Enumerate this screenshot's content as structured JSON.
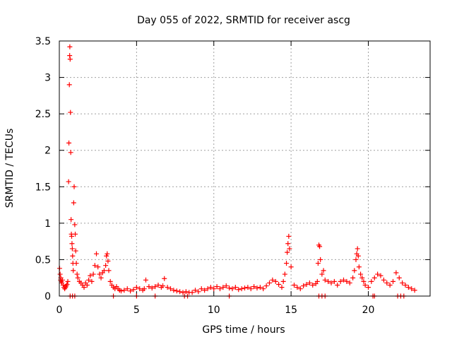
{
  "chart_data": {
    "type": "scatter",
    "title": "Day 055 of 2022, SRMTID for receiver ascg",
    "xlabel": "GPS time / hours",
    "ylabel": "SRMTID / TECUs",
    "xlim": [
      0,
      24
    ],
    "ylim": [
      0,
      3.5
    ],
    "xticks": [
      0,
      5,
      10,
      15,
      20
    ],
    "xtick_labels": [
      "0",
      "5",
      "10",
      "15",
      "20"
    ],
    "yticks": [
      0,
      0.5,
      1,
      1.5,
      2,
      2.5,
      3,
      3.5
    ],
    "ytick_labels": [
      "0",
      "0.5",
      "1",
      "1.5",
      "2",
      "2.5",
      "3",
      "3.5"
    ],
    "grid": true,
    "marker": "+",
    "color": "#ff0000",
    "series": [
      {
        "name": "ascg",
        "x": [
          0.02,
          0.05,
          0.08,
          0.1,
          0.13,
          0.16,
          0.2,
          0.25,
          0.3,
          0.35,
          0.4,
          0.45,
          0.5,
          0.55,
          0.6,
          0.62,
          0.65,
          0.67,
          0.68,
          0.7,
          0.72,
          0.74,
          0.76,
          0.78,
          0.8,
          0.82,
          0.84,
          0.86,
          0.88,
          0.9,
          0.93,
          0.96,
          1.0,
          1.03,
          1.06,
          1.1,
          1.15,
          1.2,
          1.3,
          1.4,
          1.5,
          1.6,
          1.7,
          1.8,
          1.9,
          2.0,
          2.1,
          2.2,
          2.3,
          2.4,
          2.5,
          2.6,
          2.7,
          2.8,
          2.9,
          3.0,
          3.05,
          3.1,
          3.15,
          3.2,
          3.3,
          3.4,
          3.5,
          3.6,
          3.7,
          3.8,
          3.9,
          4.0,
          4.2,
          4.4,
          4.6,
          4.8,
          5.0,
          5.2,
          5.4,
          5.5,
          5.6,
          5.8,
          6.0,
          6.2,
          6.4,
          6.6,
          6.7,
          6.8,
          7.0,
          7.2,
          7.4,
          7.6,
          7.8,
          8.0,
          8.2,
          8.4,
          8.6,
          8.8,
          9.0,
          9.2,
          9.4,
          9.6,
          9.8,
          10.0,
          10.2,
          10.4,
          10.6,
          10.8,
          11.0,
          11.2,
          11.4,
          11.6,
          11.8,
          12.0,
          12.2,
          12.4,
          12.6,
          12.8,
          13.0,
          13.2,
          13.4,
          13.6,
          13.8,
          14.0,
          14.2,
          14.4,
          14.5,
          14.6,
          14.7,
          14.75,
          14.8,
          14.85,
          14.9,
          15.0,
          15.2,
          15.4,
          15.6,
          15.8,
          16.0,
          16.2,
          16.4,
          16.6,
          16.7,
          16.75,
          16.8,
          16.85,
          16.9,
          17.0,
          17.1,
          17.2,
          17.4,
          17.6,
          17.8,
          18.0,
          18.2,
          18.4,
          18.6,
          18.8,
          19.0,
          19.1,
          19.2,
          19.25,
          19.3,
          19.35,
          19.4,
          19.5,
          19.6,
          19.7,
          19.8,
          20.0,
          20.2,
          20.4,
          20.6,
          20.8,
          21.0,
          21.2,
          21.4,
          21.6,
          21.8,
          22.0,
          22.2,
          22.4,
          22.6,
          22.8,
          23.0
        ],
        "values": [
          0.38,
          0.3,
          0.22,
          0.25,
          0.2,
          0.18,
          0.22,
          0.15,
          0.12,
          0.1,
          0.12,
          0.14,
          0.16,
          0.2,
          1.57,
          2.1,
          2.9,
          3.3,
          3.42,
          3.25,
          2.52,
          1.97,
          1.05,
          0.85,
          0.82,
          0.72,
          0.65,
          0.55,
          0.45,
          0.35,
          1.28,
          1.5,
          0.98,
          0.85,
          0.62,
          0.45,
          0.3,
          0.25,
          0.2,
          0.18,
          0.15,
          0.12,
          0.18,
          0.15,
          0.22,
          0.28,
          0.2,
          0.3,
          0.42,
          0.58,
          0.4,
          0.3,
          0.25,
          0.32,
          0.35,
          0.42,
          0.55,
          0.58,
          0.48,
          0.35,
          0.2,
          0.15,
          0.12,
          0.1,
          0.13,
          0.1,
          0.08,
          0.07,
          0.08,
          0.1,
          0.07,
          0.09,
          0.12,
          0.1,
          0.08,
          0.1,
          0.22,
          0.13,
          0.11,
          0.13,
          0.15,
          0.12,
          0.14,
          0.24,
          0.12,
          0.1,
          0.08,
          0.07,
          0.06,
          0.05,
          0.06,
          0.05,
          0.05,
          0.08,
          0.06,
          0.1,
          0.08,
          0.1,
          0.12,
          0.1,
          0.13,
          0.1,
          0.12,
          0.14,
          0.11,
          0.1,
          0.12,
          0.09,
          0.1,
          0.11,
          0.12,
          0.1,
          0.13,
          0.11,
          0.12,
          0.1,
          0.14,
          0.18,
          0.22,
          0.2,
          0.16,
          0.12,
          0.2,
          0.3,
          0.45,
          0.6,
          0.72,
          0.82,
          0.65,
          0.4,
          0.15,
          0.12,
          0.1,
          0.14,
          0.16,
          0.18,
          0.15,
          0.17,
          0.2,
          0.45,
          0.7,
          0.68,
          0.5,
          0.3,
          0.35,
          0.22,
          0.2,
          0.18,
          0.2,
          0.15,
          0.2,
          0.22,
          0.2,
          0.18,
          0.25,
          0.35,
          0.5,
          0.58,
          0.65,
          0.55,
          0.4,
          0.3,
          0.25,
          0.2,
          0.15,
          0.12,
          0.2,
          0.25,
          0.3,
          0.28,
          0.22,
          0.18,
          0.15,
          0.2,
          0.32,
          0.25,
          0.18,
          0.15,
          0.12,
          0.1,
          0.08
        ],
        "zero_x": [
          0.7,
          0.85,
          1.0,
          3.5,
          5.0,
          6.2,
          8.1,
          8.3,
          11.0,
          16.8,
          17.0,
          17.2,
          20.3,
          20.4,
          21.9,
          22.1,
          22.3
        ]
      }
    ]
  }
}
